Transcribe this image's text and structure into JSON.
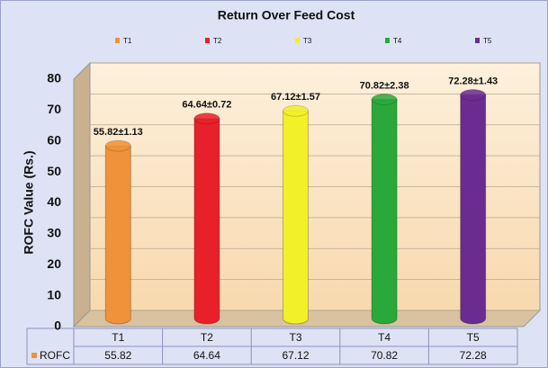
{
  "chart_data": {
    "type": "bar",
    "title": "Return Over Feed Cost",
    "y_label": "ROFC Value (Rs.)",
    "categories": [
      "T1",
      "T2",
      "T3",
      "T4",
      "T5"
    ],
    "colors": [
      "#f0923a",
      "#e8202a",
      "#f2f028",
      "#2aa83a",
      "#6a2c91"
    ],
    "series": [
      {
        "name": "ROFC",
        "color": "#f0923a",
        "values": [
          55.82,
          64.64,
          67.12,
          70.82,
          72.28
        ],
        "value_labels": [
          "55.82±1.13",
          "64.64±0.72",
          "67.12±1.57",
          "70.82±2.38",
          "72.28±1.43"
        ]
      }
    ],
    "ylim": [
      0,
      80
    ],
    "yticks": [
      0,
      10,
      20,
      30,
      40,
      50,
      60,
      70,
      80
    ],
    "grid": true
  }
}
